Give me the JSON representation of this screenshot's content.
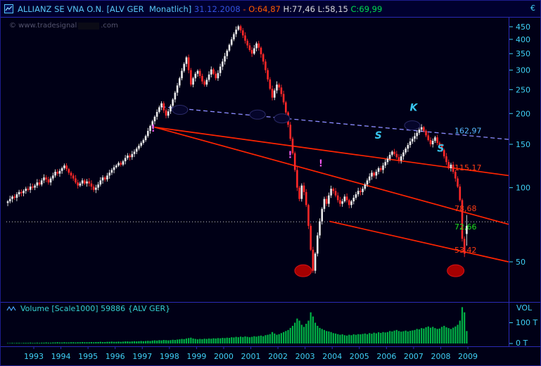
{
  "window": {
    "title_segments": [
      {
        "text": "ALLIANZ SE VNA O.N. [ALV GER  Monatlich] ",
        "color": "#58c6f6"
      },
      {
        "text": "31.12.2008 ",
        "color": "#3452e0"
      },
      {
        "text": "- ",
        "color": "#ff5a00"
      },
      {
        "text": "O:64,87 ",
        "color": "#ff5a00"
      },
      {
        "text": "H:77,46 ",
        "color": "#d8d8dc"
      },
      {
        "text": "L:58,15 ",
        "color": "#d8d8dc"
      },
      {
        "text": "C:69,99",
        "color": "#00dc50"
      }
    ],
    "watermark_prefix": "© www.tradesignal",
    "watermark_suffix": ".com"
  },
  "price_axis": {
    "unit": "€",
    "ticks": [
      450,
      400,
      350,
      300,
      250,
      200,
      150,
      100,
      50
    ]
  },
  "time_axis": {
    "years": [
      "1993",
      "1994",
      "1995",
      "1996",
      "1997",
      "1998",
      "1999",
      "2000",
      "2001",
      "2002",
      "2003",
      "2004",
      "2005",
      "2006",
      "2007",
      "2008",
      "2009"
    ]
  },
  "volume_panel": {
    "label": "Volume [Scale1000] ",
    "value": "59886 ",
    "symbol": "{ALV GER}",
    "axis_top": "VOL",
    "axis_mid": "100 T",
    "axis_zero": "0 T"
  },
  "levels": [
    {
      "text": "162,97",
      "price": 162.97,
      "color": "#58b8ff",
      "below": false
    },
    {
      "text": "115,17",
      "price": 115.17,
      "color": "#ff3c14",
      "below": false
    },
    {
      "text": "78,68",
      "price": 78.68,
      "color": "#ff3c14",
      "below": false
    },
    {
      "text": "72,66",
      "price": 72.66,
      "color": "#1ee01e",
      "below": true
    },
    {
      "text": "53,42",
      "price": 53.42,
      "color": "#ff3c14",
      "below": false
    }
  ],
  "annotations": {
    "letters": [
      {
        "text": "S",
        "year": 2005.7,
        "price": 158
      },
      {
        "text": "K",
        "year": 2007.0,
        "price": 205
      },
      {
        "text": "S",
        "year": 2008.0,
        "price": 140
      }
    ],
    "exclamations": [
      {
        "text": "!",
        "year": 1997.4,
        "price": 169
      },
      {
        "text": "!",
        "year": 2002.45,
        "price": 132
      },
      {
        "text": "!",
        "year": 2003.58,
        "price": 122
      }
    ],
    "dark_ellipses": [
      {
        "year": 1998.39,
        "price": 207
      },
      {
        "year": 2001.25,
        "price": 198
      },
      {
        "year": 2002.15,
        "price": 191
      },
      {
        "year": 2006.95,
        "price": 179
      }
    ],
    "red_ellipses": [
      {
        "year": 2002.93,
        "price": 46
      },
      {
        "year": 2008.55,
        "price": 46
      }
    ]
  },
  "overlays": {
    "dashed_line": {
      "x1": 1997.7,
      "p1": 213,
      "x2": 2010.5,
      "p2": 157,
      "color": "#8c8cff"
    },
    "red_lines": [
      {
        "x1": 1997.45,
        "p1": 176,
        "x2": 2010.5,
        "p2": 112
      },
      {
        "x1": 1997.45,
        "p1": 176,
        "x2": 2010.5,
        "p2": 71
      },
      {
        "x1": 2003.9,
        "p1": 73,
        "x2": 2010.5,
        "p2": 50
      }
    ],
    "red_color": "#ff2400",
    "dotted_hline": {
      "price": 72.66,
      "color": "#cfcfcf"
    }
  },
  "chart_data": {
    "type": "candlestick",
    "title": "ALLIANZ SE VNA O.N. [ALV GER Monatlich]",
    "interval": "monthly",
    "y_scale": "log",
    "ylim": [
      44,
      480
    ],
    "x_range_years": [
      1992,
      2009.5
    ],
    "start_month": "1992-01",
    "last_bar": {
      "date": "31.12.2008",
      "open": 64.87,
      "high": 77.46,
      "low": 58.15,
      "close": 69.99
    },
    "level_values": [
      162.97,
      115.17,
      78.68,
      72.66,
      53.42
    ],
    "closes": [
      88,
      90,
      92,
      91,
      94,
      96,
      95,
      97,
      99,
      98,
      101,
      100,
      102,
      105,
      103,
      107,
      110,
      108,
      105,
      109,
      112,
      116,
      114,
      117,
      120,
      123,
      119,
      115,
      112,
      109,
      105,
      102,
      104,
      107,
      104,
      106,
      104,
      101,
      98,
      100,
      103,
      107,
      110,
      108,
      112,
      115,
      118,
      121,
      123,
      126,
      124,
      128,
      132,
      135,
      133,
      137,
      140,
      144,
      148,
      152,
      156,
      162,
      170,
      178,
      186,
      194,
      203,
      212,
      220,
      206,
      196,
      204,
      215,
      228,
      243,
      260,
      278,
      298,
      318,
      338,
      300,
      262,
      278,
      290,
      298,
      284,
      270,
      262,
      274,
      288,
      302,
      290,
      278,
      292,
      310,
      325,
      342,
      360,
      380,
      400,
      420,
      438,
      452,
      435,
      415,
      395,
      378,
      362,
      350,
      368,
      385,
      370,
      348,
      325,
      300,
      275,
      252,
      232,
      248,
      262,
      255,
      240,
      222,
      202,
      180,
      158,
      138,
      118,
      100,
      90,
      102,
      96,
      85,
      70,
      56,
      46,
      54,
      64,
      73,
      82,
      90,
      86,
      93,
      99,
      97,
      93,
      89,
      86,
      88,
      92,
      89,
      85,
      88,
      91,
      94,
      97,
      96,
      99,
      103,
      107,
      111,
      115,
      112,
      116,
      120,
      118,
      123,
      127,
      131,
      136,
      140,
      137,
      133,
      129,
      134,
      139,
      144,
      149,
      154,
      158,
      162,
      167,
      172,
      176,
      170,
      163,
      156,
      150,
      155,
      160,
      152,
      148,
      142,
      134,
      127,
      120,
      124,
      116,
      109,
      101,
      89,
      62,
      54,
      69.99
    ],
    "volumes_thousands": [
      2,
      2,
      3,
      2,
      3,
      3,
      2,
      3,
      3,
      3,
      4,
      3,
      3,
      4,
      3,
      4,
      4,
      5,
      4,
      4,
      5,
      5,
      6,
      5,
      5,
      6,
      5,
      5,
      6,
      6,
      5,
      6,
      6,
      7,
      6,
      6,
      6,
      7,
      6,
      7,
      7,
      8,
      7,
      7,
      8,
      8,
      9,
      8,
      8,
      9,
      8,
      9,
      10,
      10,
      9,
      10,
      11,
      10,
      11,
      12,
      11,
      12,
      13,
      12,
      14,
      15,
      14,
      16,
      15,
      17,
      16,
      15,
      16,
      18,
      17,
      19,
      20,
      22,
      21,
      24,
      26,
      28,
      24,
      22,
      20,
      22,
      21,
      23,
      22,
      24,
      23,
      25,
      24,
      26,
      25,
      27,
      26,
      28,
      27,
      30,
      29,
      32,
      30,
      33,
      31,
      34,
      32,
      30,
      32,
      35,
      33,
      36,
      38,
      35,
      40,
      42,
      45,
      55,
      48,
      42,
      45,
      50,
      55,
      60,
      65,
      75,
      85,
      100,
      120,
      110,
      90,
      80,
      95,
      110,
      150,
      130,
      100,
      85,
      75,
      70,
      65,
      60,
      58,
      55,
      50,
      48,
      45,
      42,
      44,
      40,
      38,
      42,
      40,
      44,
      42,
      45,
      44,
      46,
      48,
      45,
      50,
      47,
      52,
      49,
      54,
      51,
      55,
      53,
      55,
      60,
      58,
      62,
      65,
      60,
      57,
      59,
      62,
      58,
      61,
      63,
      65,
      70,
      68,
      74,
      72,
      78,
      82,
      76,
      80,
      74,
      70,
      72,
      80,
      85,
      78,
      74,
      70,
      76,
      82,
      90,
      110,
      175,
      150,
      60
    ],
    "volume_last": 59886
  },
  "colors": {
    "background": "#000016",
    "panel_border": "#2a2ab4",
    "axis_text": "#3fd0f5",
    "candle_up": "#ebebeb",
    "candle_down": "#ff2828",
    "volume_bar": "#00b446",
    "letter": "#38c6f0",
    "exclamation": "#ee55ee"
  }
}
